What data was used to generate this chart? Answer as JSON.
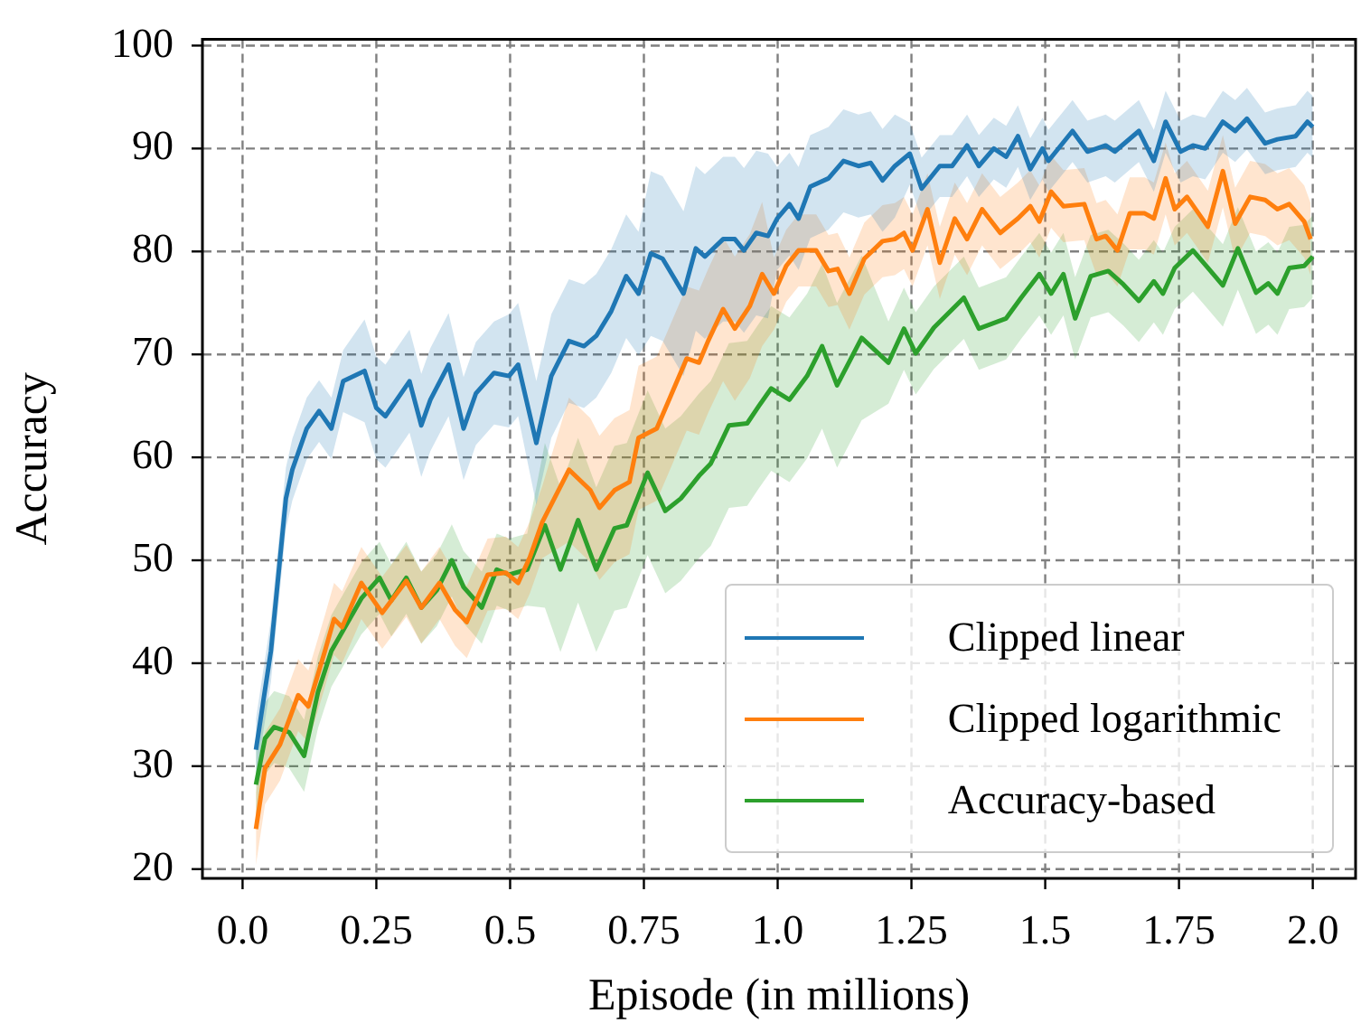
{
  "chart_data": {
    "type": "line",
    "xlabel": "Episode (in millions)",
    "ylabel": "Accuracy",
    "xlim": [
      -0.075,
      2.08
    ],
    "ylim": [
      19.1,
      100.6
    ],
    "xticks": [
      {
        "value": 0,
        "label": "0.0"
      },
      0.25,
      0.5,
      0.75,
      {
        "value": 1,
        "label": "1.0"
      },
      1.25,
      1.5,
      1.75,
      {
        "value": 2,
        "label": "2.0"
      }
    ],
    "yticks": [
      20,
      30,
      40,
      50,
      60,
      70,
      80,
      90,
      100
    ],
    "grid": true,
    "legend": "bottom right",
    "marker": "none",
    "line_style": "solid",
    "series": [
      {
        "name": "Clipped linear",
        "color": "#1f77b4",
        "x": [
          0.025,
          0.053,
          0.081,
          0.093,
          0.12,
          0.143,
          0.166,
          0.188,
          0.228,
          0.25,
          0.267,
          0.312,
          0.334,
          0.351,
          0.385,
          0.413,
          0.436,
          0.47,
          0.498,
          0.515,
          0.549,
          0.577,
          0.61,
          0.638,
          0.661,
          0.689,
          0.717,
          0.74,
          0.763,
          0.785,
          0.824,
          0.847,
          0.864,
          0.898,
          0.92,
          0.937,
          0.96,
          0.982,
          0.999,
          1.022,
          1.039,
          1.061,
          1.095,
          1.123,
          1.151,
          1.174,
          1.196,
          1.219,
          1.247,
          1.269,
          1.303,
          1.326,
          1.354,
          1.376,
          1.404,
          1.427,
          1.449,
          1.472,
          1.495,
          1.506,
          1.551,
          1.579,
          1.613,
          1.63,
          1.675,
          1.703,
          1.725,
          1.753,
          1.776,
          1.799,
          1.832,
          1.855,
          1.877,
          1.911,
          1.934,
          1.968,
          1.99,
          2.0
        ],
        "values": [
          31.6,
          41.2,
          56,
          58.8,
          62.8,
          64.5,
          62.8,
          67.4,
          68.4,
          64.8,
          64,
          67.4,
          63.1,
          65.6,
          69,
          62.8,
          66.2,
          68.2,
          67.9,
          69,
          61.4,
          67.9,
          71.3,
          70.8,
          71.8,
          74.2,
          77.6,
          75.9,
          79.8,
          79.3,
          75.9,
          80.3,
          79.5,
          81.2,
          81.2,
          80.1,
          81.8,
          81.5,
          83.2,
          84.6,
          83.2,
          86.3,
          87.1,
          88.8,
          88.3,
          88.6,
          86.9,
          88.3,
          89.5,
          86.1,
          88.3,
          88.3,
          90.3,
          88.3,
          90,
          89.2,
          91.2,
          88,
          90,
          88.8,
          91.7,
          89.7,
          90.3,
          89.7,
          91.7,
          88.8,
          92.6,
          89.7,
          90.3,
          90,
          92.6,
          91.7,
          92.9,
          90.5,
          90.9,
          91.2,
          92.6,
          92.1
        ],
        "lower": [
          28.6,
          38.2,
          53,
          55.8,
          59.8,
          61.5,
          59.8,
          64.4,
          63.4,
          59.8,
          59,
          62.4,
          58.1,
          60.6,
          64,
          57.8,
          61.2,
          63.2,
          62.9,
          64,
          55.4,
          61.9,
          65.3,
          64.8,
          65.8,
          68.2,
          71.6,
          69.9,
          71.8,
          71.3,
          67.9,
          72.3,
          71.5,
          73.2,
          73.2,
          72.1,
          73.8,
          73.5,
          78.2,
          79.6,
          78.2,
          81.3,
          82.1,
          83.8,
          83.3,
          83.6,
          81.9,
          83.3,
          86.5,
          83.1,
          85.3,
          85.3,
          87.3,
          85.3,
          87,
          86.2,
          88.2,
          85,
          87,
          85.8,
          88.7,
          86.7,
          87.3,
          86.7,
          88.7,
          85.8,
          89.6,
          86.7,
          87.3,
          87,
          89.6,
          88.7,
          89.9,
          87.5,
          87.9,
          88.2,
          89.6,
          89.1
        ],
        "upper": [
          34.6,
          44.2,
          59,
          61.8,
          65.8,
          67.5,
          65.8,
          70.4,
          73.4,
          69.8,
          69,
          72.4,
          68.1,
          70.6,
          74,
          67.8,
          71.2,
          73.2,
          73.9,
          75,
          67.4,
          73.9,
          77.3,
          76.8,
          77.8,
          80.2,
          83.6,
          81.9,
          87.8,
          87.3,
          83.9,
          88.3,
          87.5,
          89.2,
          89.2,
          88.1,
          89.8,
          89.5,
          88.2,
          89.6,
          88.2,
          91.3,
          92.1,
          93.8,
          93.3,
          93.6,
          91.9,
          93.3,
          92.5,
          89.1,
          91.3,
          91.3,
          93.3,
          91.3,
          93,
          92.2,
          94.2,
          91,
          93,
          91.8,
          94.7,
          92.7,
          93.3,
          92.7,
          94.7,
          91.8,
          95.6,
          92.7,
          93.3,
          93,
          95.6,
          94.7,
          95.9,
          93.5,
          93.9,
          94.2,
          95.6,
          95.1
        ]
      },
      {
        "name": "Clipped logarithmic",
        "color": "#ff7f0e",
        "x": [
          0.025,
          0.042,
          0.07,
          0.104,
          0.123,
          0.154,
          0.171,
          0.186,
          0.222,
          0.261,
          0.306,
          0.334,
          0.368,
          0.397,
          0.419,
          0.458,
          0.492,
          0.515,
          0.537,
          0.56,
          0.61,
          0.65,
          0.667,
          0.695,
          0.723,
          0.74,
          0.774,
          0.802,
          0.83,
          0.853,
          0.87,
          0.898,
          0.92,
          0.948,
          0.971,
          0.993,
          1.016,
          1.039,
          1.072,
          1.095,
          1.112,
          1.134,
          1.162,
          1.196,
          1.219,
          1.236,
          1.252,
          1.28,
          1.303,
          1.331,
          1.354,
          1.382,
          1.416,
          1.449,
          1.472,
          1.489,
          1.511,
          1.534,
          1.573,
          1.596,
          1.613,
          1.635,
          1.658,
          1.686,
          1.703,
          1.725,
          1.742,
          1.765,
          1.804,
          1.832,
          1.855,
          1.883,
          1.911,
          1.934,
          1.956,
          1.984,
          1.996
        ],
        "values": [
          23.9,
          29.8,
          32.1,
          36.9,
          35.8,
          41.2,
          44.3,
          43.5,
          47.8,
          44.9,
          48,
          45.4,
          47.8,
          45.2,
          44,
          48.6,
          48.8,
          47.8,
          50.3,
          53.7,
          58.8,
          56.8,
          55.1,
          56.8,
          57.6,
          61.9,
          62.8,
          66.2,
          69.6,
          69.2,
          71.3,
          74.4,
          72.5,
          74.7,
          77.8,
          75.9,
          78.6,
          80.1,
          80.1,
          78.1,
          78.3,
          75.9,
          79.3,
          81,
          81.2,
          81.8,
          80.1,
          84.1,
          78.9,
          83.2,
          81.2,
          84.1,
          81.8,
          83.2,
          84.4,
          82.9,
          85.8,
          84.4,
          84.6,
          81.2,
          81.5,
          80.1,
          83.7,
          83.7,
          83.2,
          87.1,
          84.1,
          85.3,
          82.4,
          87.8,
          82.7,
          85.3,
          85,
          84.1,
          84.6,
          82.9,
          81.2
        ],
        "lower": [
          20.4,
          26.3,
          28.6,
          33.4,
          32.3,
          37.7,
          40.8,
          40,
          44.3,
          41.4,
          44.5,
          41.9,
          44.3,
          41.7,
          40.5,
          45.1,
          45.3,
          44.3,
          46.8,
          50.2,
          51.8,
          49.8,
          48.1,
          49.8,
          50.6,
          54.9,
          55.8,
          59.2,
          62.6,
          62.2,
          64.3,
          67.4,
          65.5,
          67.7,
          70.8,
          72.4,
          75.1,
          76.6,
          76.6,
          74.6,
          74.8,
          72.4,
          75.8,
          77.5,
          77.7,
          78.3,
          76.6,
          80.6,
          75.4,
          79.7,
          77.7,
          80.6,
          78.3,
          79.7,
          80.9,
          79.4,
          82.3,
          80.9,
          81.1,
          77.7,
          78,
          76.6,
          80.2,
          80.2,
          79.7,
          83.6,
          80.6,
          81.8,
          78.9,
          84.3,
          79.2,
          81.8,
          81.5,
          80.6,
          81.1,
          79.4,
          77.7
        ],
        "upper": [
          27.4,
          33.3,
          35.6,
          40.4,
          39.3,
          44.7,
          47.8,
          47,
          51.3,
          48.4,
          51.5,
          48.9,
          51.3,
          48.7,
          47.5,
          52.1,
          52.3,
          51.3,
          53.8,
          57.2,
          65.8,
          63.8,
          62.1,
          63.8,
          64.6,
          68.9,
          69.8,
          73.2,
          76.6,
          76.2,
          78.3,
          81.4,
          79.5,
          81.7,
          84.8,
          79.4,
          82.1,
          83.6,
          83.6,
          81.6,
          81.8,
          79.4,
          82.8,
          84.5,
          84.7,
          85.3,
          83.6,
          87.6,
          82.4,
          86.7,
          84.7,
          87.6,
          85.3,
          86.7,
          87.9,
          86.4,
          89.3,
          87.9,
          88.1,
          84.7,
          85,
          83.6,
          87.2,
          87.2,
          86.7,
          90.6,
          87.6,
          88.8,
          85.9,
          91.3,
          86.2,
          88.8,
          88.5,
          87.6,
          88.1,
          86.4,
          84.7
        ]
      },
      {
        "name": "Accuracy-based",
        "color": "#2ca02c",
        "x": [
          0.025,
          0.042,
          0.059,
          0.087,
          0.115,
          0.141,
          0.166,
          0.188,
          0.222,
          0.256,
          0.278,
          0.306,
          0.334,
          0.363,
          0.391,
          0.413,
          0.447,
          0.475,
          0.498,
          0.532,
          0.565,
          0.594,
          0.627,
          0.661,
          0.695,
          0.718,
          0.757,
          0.79,
          0.819,
          0.853,
          0.875,
          0.909,
          0.943,
          0.965,
          0.988,
          1.022,
          1.055,
          1.083,
          1.111,
          1.157,
          1.207,
          1.236,
          1.258,
          1.292,
          1.348,
          1.376,
          1.427,
          1.455,
          1.489,
          1.511,
          1.534,
          1.556,
          1.585,
          1.618,
          1.646,
          1.675,
          1.703,
          1.72,
          1.742,
          1.776,
          1.804,
          1.832,
          1.86,
          1.894,
          1.917,
          1.934,
          1.956,
          1.984,
          2.0
        ],
        "values": [
          28.2,
          32.7,
          33.8,
          33.3,
          31,
          37.2,
          41.2,
          43.2,
          46.3,
          48.3,
          46.1,
          48.3,
          45.4,
          47.1,
          50,
          47.4,
          45.4,
          49.1,
          48.6,
          49.1,
          53.4,
          49.1,
          53.9,
          49.1,
          53.1,
          53.4,
          58.5,
          54.8,
          56,
          58.2,
          59.4,
          63.1,
          63.3,
          65,
          66.7,
          65.6,
          67.9,
          70.8,
          67,
          71.6,
          69.2,
          72.5,
          70.1,
          72.6,
          75.5,
          72.5,
          73.5,
          75.5,
          77.8,
          75.9,
          77.8,
          73.5,
          77.6,
          78.1,
          76.8,
          75.2,
          77.1,
          75.9,
          78.4,
          80.1,
          78.4,
          76.7,
          80.3,
          76,
          76.9,
          75.9,
          78.4,
          78.6,
          79.5
        ],
        "lower": [
          24.7,
          29.2,
          30.3,
          29.8,
          27.5,
          33.7,
          37.7,
          39.7,
          42.8,
          44.8,
          42.6,
          44.8,
          41.9,
          43.6,
          46.5,
          43.9,
          41.9,
          45.6,
          45.1,
          45.6,
          45.4,
          41.1,
          45.9,
          41.1,
          45.1,
          45.4,
          50.5,
          46.8,
          48,
          50.2,
          51.4,
          55.1,
          55.3,
          57,
          58.7,
          57.6,
          59.9,
          62.8,
          59,
          63.6,
          65.2,
          68.5,
          66.1,
          68.6,
          71.5,
          68.5,
          69.5,
          71.5,
          73.8,
          71.9,
          73.8,
          69.5,
          73.6,
          74.1,
          72.8,
          71.2,
          73.1,
          71.9,
          74.4,
          76.1,
          74.4,
          72.7,
          76.3,
          72,
          72.9,
          71.9,
          74.4,
          74.6,
          75.5
        ],
        "upper": [
          31.7,
          36.2,
          37.3,
          36.8,
          34.5,
          40.7,
          44.7,
          46.7,
          49.8,
          51.8,
          49.6,
          51.8,
          48.9,
          50.6,
          53.5,
          50.9,
          48.9,
          52.6,
          52.1,
          52.6,
          61.4,
          57.1,
          61.9,
          57.1,
          61.1,
          61.4,
          66.5,
          62.8,
          64,
          66.2,
          67.4,
          71.1,
          71.3,
          73,
          74.7,
          73.6,
          75.9,
          78.8,
          75,
          79.6,
          73.2,
          76.5,
          74.1,
          76.6,
          79.5,
          76.5,
          77.5,
          79.5,
          81.8,
          79.9,
          81.8,
          77.5,
          81.6,
          82.1,
          80.8,
          79.2,
          81.1,
          79.9,
          82.4,
          84.1,
          82.4,
          80.7,
          84.3,
          80,
          80.9,
          79.9,
          82.4,
          82.6,
          83.5
        ]
      }
    ]
  }
}
